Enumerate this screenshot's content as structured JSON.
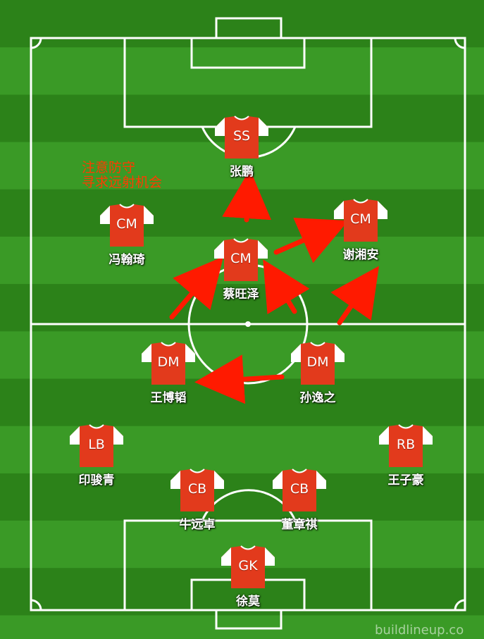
{
  "players": [
    {
      "pos": "SS",
      "name": "张鹏"
    },
    {
      "pos": "CM",
      "name": "冯翰琦"
    },
    {
      "pos": "CM",
      "name": "谢湘安"
    },
    {
      "pos": "CM",
      "name": "蔡旺泽"
    },
    {
      "pos": "DM",
      "name": "王博韬"
    },
    {
      "pos": "DM",
      "name": "孙逸之"
    },
    {
      "pos": "LB",
      "name": "印骏青"
    },
    {
      "pos": "RB",
      "name": "王子豪"
    },
    {
      "pos": "CB",
      "name": "牛远卓"
    },
    {
      "pos": "CB",
      "name": "董章祺"
    },
    {
      "pos": "GK",
      "name": "徐莫"
    }
  ],
  "note": {
    "line1": "注意防守",
    "line2": "寻求远射机会"
  },
  "watermark": "buildlineup.co",
  "colors": {
    "grass_dark": "#2c8219",
    "grass_light": "#3a9a26",
    "shirt_body": "#e23a1c",
    "shirt_sleeve": "#ffffff",
    "arrow": "#ff1a00",
    "note": "#ff3b00"
  }
}
